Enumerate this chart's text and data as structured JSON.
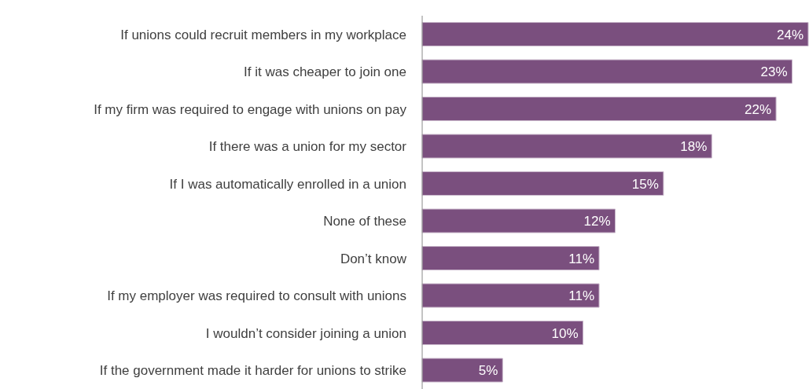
{
  "chart_data": {
    "type": "bar",
    "orientation": "horizontal",
    "color": "#7a4f7e",
    "categories": [
      "If unions could recruit members in my workplace",
      "If it was cheaper to join one",
      "If my firm was required to engage with unions on pay",
      "If there was a union for my sector",
      "If I was automatically enrolled in a union",
      "None of these",
      "Don’t know",
      "If my employer was required to consult with unions",
      "I wouldn’t consider joining a union",
      "If the government made it harder for unions to strike"
    ],
    "values": [
      24,
      23,
      22,
      18,
      15,
      12,
      11,
      11,
      10,
      5
    ],
    "value_labels": [
      "24%",
      "23%",
      "22%",
      "18%",
      "15%",
      "12%",
      "11%",
      "11%",
      "10%",
      "5%"
    ]
  }
}
